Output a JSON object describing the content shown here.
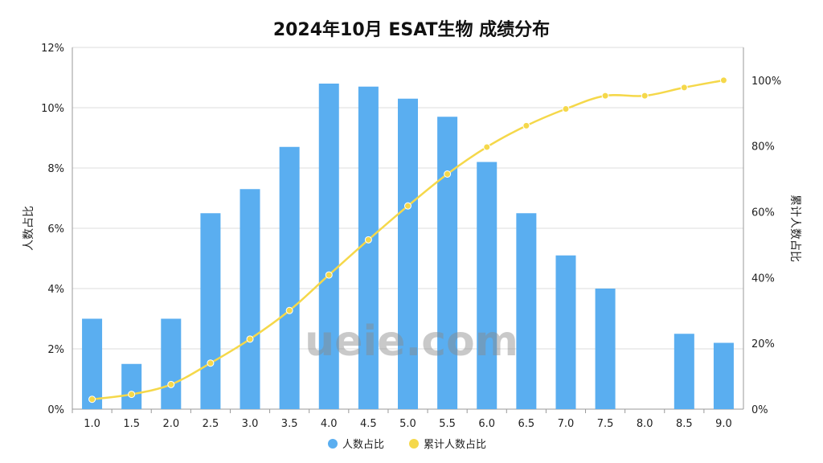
{
  "chart_data": {
    "type": "bar",
    "title": "2024年10月 ESAT生物 成绩分布",
    "categories": [
      "1.0",
      "1.5",
      "2.0",
      "2.5",
      "3.0",
      "3.5",
      "4.0",
      "4.5",
      "5.0",
      "5.5",
      "6.0",
      "6.5",
      "7.0",
      "7.5",
      "8.0",
      "8.5",
      "9.0"
    ],
    "series": [
      {
        "name": "人数占比",
        "type": "bar",
        "axis": "left",
        "color": "#5aaef0",
        "values": [
          3.0,
          1.5,
          3.0,
          6.5,
          7.3,
          8.7,
          10.8,
          10.7,
          10.3,
          9.7,
          8.2,
          6.5,
          5.1,
          4.0,
          0,
          2.5,
          2.2
        ]
      },
      {
        "name": "累计人数占比",
        "type": "line",
        "axis": "right",
        "color": "#f5d84a",
        "values": [
          3.0,
          4.5,
          7.5,
          14.0,
          21.3,
          30.0,
          40.8,
          51.5,
          61.8,
          71.5,
          79.7,
          86.2,
          91.3,
          95.3,
          95.3,
          97.8,
          100.0
        ]
      }
    ],
    "ylabel": "人数占比",
    "ylabel_right": "累计人数占比",
    "ylim": [
      0,
      12
    ],
    "yticks": [
      "0%",
      "2%",
      "4%",
      "6%",
      "8%",
      "10%",
      "12%"
    ],
    "ylim_right": [
      0,
      110
    ],
    "yticks_right": [
      "0%",
      "20%",
      "40%",
      "60%",
      "80%",
      "100%"
    ],
    "grid": true,
    "legend": "bottom"
  },
  "watermark": "ueie.com"
}
